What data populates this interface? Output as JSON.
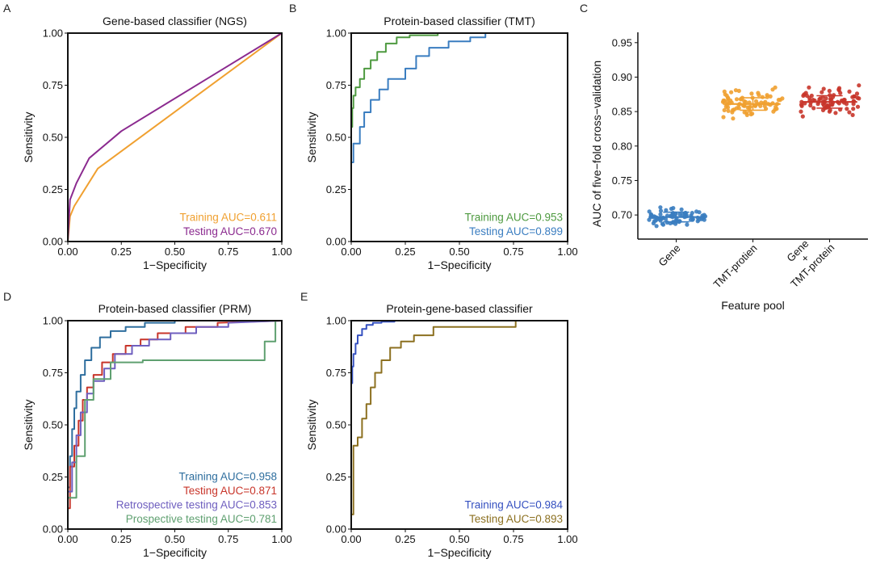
{
  "figure": {
    "panels": [
      {
        "id": "A",
        "letter": "A"
      },
      {
        "id": "B",
        "letter": "B"
      },
      {
        "id": "C",
        "letter": "C"
      },
      {
        "id": "D",
        "letter": "D"
      },
      {
        "id": "E",
        "letter": "E"
      }
    ]
  },
  "chart_data": [
    {
      "panel": "A",
      "type": "line",
      "title": "Gene-based classifier (NGS)",
      "xlabel": "1−Specificity",
      "ylabel": "Sensitivity",
      "xlim": [
        0,
        1
      ],
      "ylim": [
        0,
        1
      ],
      "xticks": [
        "0.00",
        "0.25",
        "0.50",
        "0.75",
        "1.00"
      ],
      "yticks": [
        "0.00",
        "0.25",
        "0.50",
        "0.75",
        "1.00"
      ],
      "grid": false,
      "legend_position": "bottom-right",
      "series": [
        {
          "name": "Training AUC=0.611",
          "color": "#F0A030",
          "x": [
            0,
            0.01,
            0.03,
            0.14,
            1.0
          ],
          "y": [
            0,
            0.12,
            0.17,
            0.35,
            1.0
          ]
        },
        {
          "name": "Testing AUC=0.670",
          "color": "#8B2A8F",
          "x": [
            0,
            0.01,
            0.04,
            0.1,
            0.25,
            1.0
          ],
          "y": [
            0,
            0.2,
            0.28,
            0.4,
            0.53,
            1.0
          ]
        }
      ]
    },
    {
      "panel": "B",
      "type": "line",
      "title": "Protein-based classifier (TMT)",
      "xlabel": "1−Specificity",
      "ylabel": "Sensitivity",
      "xlim": [
        0,
        1
      ],
      "ylim": [
        0,
        1
      ],
      "xticks": [
        "0.00",
        "0.25",
        "0.50",
        "0.75",
        "1.00"
      ],
      "yticks": [
        "0.00",
        "0.25",
        "0.50",
        "0.75",
        "1.00"
      ],
      "grid": false,
      "legend_position": "bottom-right",
      "series": [
        {
          "name": "Training AUC=0.953",
          "color": "#4E9A40",
          "x": [
            0,
            0,
            0.005,
            0.005,
            0.01,
            0.01,
            0.02,
            0.02,
            0.04,
            0.04,
            0.06,
            0.06,
            0.09,
            0.09,
            0.12,
            0.12,
            0.16,
            0.16,
            0.21,
            0.21,
            0.27,
            0.27,
            0.4,
            0.4,
            0.6,
            0.6,
            1.0
          ],
          "y": [
            0,
            0.55,
            0.55,
            0.64,
            0.64,
            0.7,
            0.7,
            0.74,
            0.74,
            0.78,
            0.78,
            0.83,
            0.83,
            0.87,
            0.87,
            0.91,
            0.91,
            0.95,
            0.95,
            0.98,
            0.98,
            0.99,
            0.99,
            1.0,
            1.0,
            1.0,
            1.0
          ]
        },
        {
          "name": "Testing AUC=0.899",
          "color": "#3A7DC0",
          "x": [
            0,
            0,
            0.01,
            0.01,
            0.04,
            0.04,
            0.06,
            0.06,
            0.09,
            0.09,
            0.13,
            0.13,
            0.17,
            0.17,
            0.25,
            0.25,
            0.3,
            0.3,
            0.36,
            0.36,
            0.45,
            0.45,
            0.55,
            0.55,
            0.62,
            0.62,
            1.0
          ],
          "y": [
            0,
            0.38,
            0.38,
            0.47,
            0.47,
            0.55,
            0.55,
            0.62,
            0.62,
            0.68,
            0.68,
            0.73,
            0.73,
            0.78,
            0.78,
            0.83,
            0.83,
            0.89,
            0.89,
            0.93,
            0.93,
            0.96,
            0.96,
            0.98,
            0.98,
            1.0,
            1.0
          ]
        }
      ]
    },
    {
      "panel": "C",
      "type": "scatter",
      "xlabel": "Feature pool",
      "ylabel": "AUC of five−fold cross−validation",
      "ylim": [
        0.665,
        0.965
      ],
      "yticks": [
        "0.70",
        "0.75",
        "0.80",
        "0.85",
        "0.90",
        "0.95"
      ],
      "categories": [
        "Gene",
        "TMT-protien",
        "Gene\n+\nTMT-protein"
      ],
      "grid": false,
      "series": [
        {
          "name": "Gene",
          "color": "#3A7DC0",
          "mean": 0.697,
          "lower": 0.69,
          "upper": 0.704,
          "values": [
            0.702,
            0.691,
            0.697,
            0.706,
            0.689,
            0.695,
            0.7,
            0.693,
            0.708,
            0.699,
            0.686,
            0.694,
            0.703,
            0.697,
            0.69,
            0.711,
            0.698,
            0.692,
            0.701,
            0.687,
            0.696,
            0.705,
            0.699,
            0.693,
            0.688,
            0.702,
            0.697,
            0.694,
            0.709,
            0.691,
            0.7,
            0.696,
            0.684,
            0.698,
            0.703,
            0.695,
            0.69,
            0.707,
            0.697,
            0.693,
            0.699,
            0.689,
            0.701,
            0.696,
            0.692,
            0.704,
            0.698,
            0.694,
            0.7,
            0.688,
            0.697,
            0.703,
            0.691,
            0.695,
            0.71,
            0.699,
            0.693,
            0.698,
            0.686,
            0.702,
            0.696,
            0.694,
            0.7,
            0.692,
            0.697,
            0.705,
            0.69,
            0.699,
            0.695,
            0.701,
            0.693,
            0.698,
            0.687,
            0.703,
            0.696,
            0.7,
            0.694,
            0.691,
            0.699,
            0.697
          ]
        },
        {
          "name": "TMT-protien",
          "color": "#F0A030",
          "mean": 0.861,
          "lower": 0.852,
          "upper": 0.87,
          "values": [
            0.865,
            0.852,
            0.87,
            0.858,
            0.881,
            0.848,
            0.862,
            0.874,
            0.855,
            0.867,
            0.842,
            0.86,
            0.877,
            0.863,
            0.851,
            0.869,
            0.857,
            0.885,
            0.861,
            0.846,
            0.866,
            0.872,
            0.854,
            0.86,
            0.879,
            0.849,
            0.864,
            0.858,
            0.871,
            0.853,
            0.868,
            0.862,
            0.84,
            0.875,
            0.856,
            0.866,
            0.859,
            0.882,
            0.85,
            0.863,
            0.87,
            0.857,
            0.861,
            0.847,
            0.873,
            0.865,
            0.855,
            0.868,
            0.86,
            0.878,
            0.852,
            0.864,
            0.858,
            0.869,
            0.845,
            0.862,
            0.876,
            0.856,
            0.866,
            0.861,
            0.851,
            0.871,
            0.859,
            0.867,
            0.854,
            0.863,
            0.88,
            0.849,
            0.865,
            0.857,
            0.87,
            0.86,
            0.853,
            0.868,
            0.862,
            0.874,
            0.856,
            0.864,
            0.858,
            0.861
          ]
        },
        {
          "name": "Gene + TMT-protein",
          "color": "#C8352A",
          "mean": 0.864,
          "lower": 0.855,
          "upper": 0.873,
          "values": [
            0.868,
            0.855,
            0.873,
            0.861,
            0.884,
            0.85,
            0.865,
            0.877,
            0.858,
            0.87,
            0.845,
            0.863,
            0.88,
            0.866,
            0.854,
            0.872,
            0.86,
            0.888,
            0.864,
            0.849,
            0.869,
            0.875,
            0.857,
            0.863,
            0.882,
            0.852,
            0.867,
            0.861,
            0.874,
            0.856,
            0.871,
            0.865,
            0.843,
            0.878,
            0.859,
            0.869,
            0.862,
            0.885,
            0.853,
            0.866,
            0.873,
            0.86,
            0.864,
            0.85,
            0.876,
            0.868,
            0.858,
            0.871,
            0.863,
            0.881,
            0.855,
            0.867,
            0.861,
            0.872,
            0.848,
            0.865,
            0.879,
            0.859,
            0.869,
            0.864,
            0.854,
            0.874,
            0.862,
            0.87,
            0.857,
            0.866,
            0.883,
            0.852,
            0.868,
            0.86,
            0.873,
            0.863,
            0.856,
            0.871,
            0.865,
            0.877,
            0.859,
            0.867,
            0.861,
            0.864
          ]
        }
      ]
    },
    {
      "panel": "D",
      "type": "line",
      "title": "Protein-based classifier (PRM)",
      "xlabel": "1−Specificity",
      "ylabel": "Sensitivity",
      "xlim": [
        0,
        1
      ],
      "ylim": [
        0,
        1
      ],
      "xticks": [
        "0.00",
        "0.25",
        "0.50",
        "0.75",
        "1.00"
      ],
      "yticks": [
        "0.00",
        "0.25",
        "0.50",
        "0.75",
        "1.00"
      ],
      "grid": false,
      "legend_position": "bottom-right",
      "series": [
        {
          "name": "Training AUC=0.958",
          "color": "#2E6E9E",
          "x": [
            0,
            0,
            0.01,
            0.01,
            0.02,
            0.02,
            0.03,
            0.03,
            0.04,
            0.04,
            0.06,
            0.06,
            0.08,
            0.08,
            0.11,
            0.11,
            0.15,
            0.15,
            0.2,
            0.2,
            0.27,
            0.27,
            0.36,
            0.36,
            0.5,
            0.5,
            1.0
          ],
          "y": [
            0,
            0.2,
            0.2,
            0.35,
            0.35,
            0.48,
            0.48,
            0.58,
            0.58,
            0.66,
            0.66,
            0.74,
            0.74,
            0.81,
            0.81,
            0.87,
            0.87,
            0.92,
            0.92,
            0.95,
            0.95,
            0.97,
            0.97,
            0.99,
            0.99,
            1.0,
            1.0
          ]
        },
        {
          "name": "Testing AUC=0.871",
          "color": "#C8352A",
          "x": [
            0,
            0,
            0.01,
            0.01,
            0.03,
            0.03,
            0.05,
            0.05,
            0.07,
            0.07,
            0.09,
            0.09,
            0.12,
            0.12,
            0.16,
            0.16,
            0.21,
            0.21,
            0.27,
            0.27,
            0.34,
            0.34,
            0.42,
            0.42,
            0.55,
            0.55,
            0.7,
            0.7,
            1.0
          ],
          "y": [
            0,
            0.1,
            0.1,
            0.3,
            0.3,
            0.4,
            0.4,
            0.52,
            0.52,
            0.62,
            0.62,
            0.68,
            0.68,
            0.74,
            0.74,
            0.8,
            0.8,
            0.84,
            0.84,
            0.88,
            0.88,
            0.91,
            0.91,
            0.94,
            0.94,
            0.97,
            0.97,
            0.99,
            1.0
          ]
        },
        {
          "name": "Retrospective testing AUC=0.853",
          "color": "#6F5FBF",
          "x": [
            0,
            0,
            0.02,
            0.02,
            0.04,
            0.04,
            0.06,
            0.06,
            0.09,
            0.09,
            0.12,
            0.12,
            0.17,
            0.17,
            0.22,
            0.22,
            0.3,
            0.3,
            0.38,
            0.38,
            0.48,
            0.48,
            0.6,
            0.6,
            0.75,
            0.75,
            1.0
          ],
          "y": [
            0,
            0.18,
            0.18,
            0.32,
            0.32,
            0.45,
            0.45,
            0.56,
            0.56,
            0.65,
            0.65,
            0.71,
            0.71,
            0.77,
            0.77,
            0.84,
            0.84,
            0.88,
            0.88,
            0.91,
            0.91,
            0.94,
            0.94,
            0.97,
            0.97,
            0.99,
            1.0
          ]
        },
        {
          "name": "Prospective testing AUC=0.781",
          "color": "#5FA070",
          "x": [
            0,
            0,
            0.04,
            0.04,
            0.08,
            0.08,
            0.12,
            0.12,
            0.2,
            0.2,
            0.35,
            0.35,
            0.6,
            0.6,
            0.92,
            0.92,
            0.97,
            0.97,
            1.0
          ],
          "y": [
            0,
            0.15,
            0.15,
            0.35,
            0.35,
            0.62,
            0.62,
            0.72,
            0.72,
            0.8,
            0.8,
            0.81,
            0.81,
            0.81,
            0.81,
            0.9,
            0.9,
            1.0,
            1.0
          ]
        }
      ]
    },
    {
      "panel": "E",
      "type": "line",
      "title": "Protein-gene-based classifier",
      "xlabel": "1−Specificity",
      "ylabel": "Sensitivity",
      "xlim": [
        0,
        1
      ],
      "ylim": [
        0,
        1
      ],
      "xticks": [
        "0.00",
        "0.25",
        "0.50",
        "0.75",
        "1.00"
      ],
      "yticks": [
        "0.00",
        "0.25",
        "0.50",
        "0.75",
        "1.00"
      ],
      "grid": false,
      "legend_position": "bottom-right",
      "series": [
        {
          "name": "Training AUC=0.984",
          "color": "#3550C0",
          "x": [
            0,
            0,
            0.005,
            0.005,
            0.01,
            0.01,
            0.02,
            0.02,
            0.03,
            0.03,
            0.05,
            0.05,
            0.07,
            0.07,
            0.1,
            0.1,
            0.14,
            0.14,
            0.2,
            0.2,
            0.3,
            0.3,
            1.0
          ],
          "y": [
            0,
            0.7,
            0.7,
            0.78,
            0.78,
            0.84,
            0.84,
            0.89,
            0.89,
            0.93,
            0.93,
            0.96,
            0.96,
            0.98,
            0.98,
            0.99,
            0.99,
            0.995,
            0.995,
            1.0,
            1.0,
            1.0,
            1.0
          ]
        },
        {
          "name": "Testing AUC=0.893",
          "color": "#8C7020",
          "x": [
            0,
            0,
            0.01,
            0.01,
            0.03,
            0.03,
            0.05,
            0.05,
            0.07,
            0.07,
            0.09,
            0.09,
            0.11,
            0.11,
            0.14,
            0.14,
            0.18,
            0.18,
            0.23,
            0.23,
            0.29,
            0.29,
            0.38,
            0.38,
            0.76,
            0.76,
            1.0
          ],
          "y": [
            0,
            0.07,
            0.07,
            0.4,
            0.4,
            0.44,
            0.44,
            0.53,
            0.53,
            0.6,
            0.6,
            0.68,
            0.68,
            0.75,
            0.75,
            0.81,
            0.81,
            0.87,
            0.87,
            0.9,
            0.9,
            0.93,
            0.93,
            0.97,
            0.97,
            1.0,
            1.0
          ]
        }
      ]
    }
  ]
}
